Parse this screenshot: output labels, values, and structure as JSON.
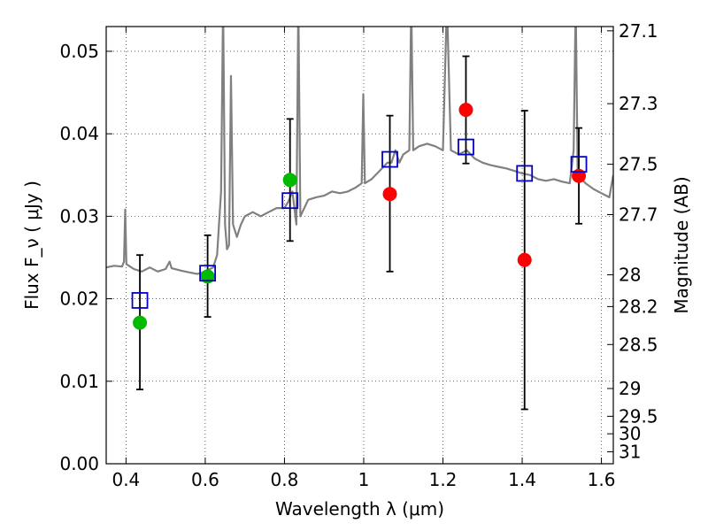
{
  "chart_data": {
    "type": "scatter",
    "xlabel": "Wavelength  λ (μm)",
    "ylabel": "Flux  F_ν  ( μJy )",
    "y2label": "Magnitude (AB)",
    "xlim": [
      0.35,
      1.63
    ],
    "ylim": [
      0.0,
      0.053
    ],
    "grid": true,
    "x_ticks": [
      {
        "value": 0.4,
        "label": "0.4"
      },
      {
        "value": 0.6,
        "label": "0.6"
      },
      {
        "value": 0.8,
        "label": "0.8"
      },
      {
        "value": 1.0,
        "label": "1"
      },
      {
        "value": 1.2,
        "label": "1.2"
      },
      {
        "value": 1.4,
        "label": "1.4"
      },
      {
        "value": 1.6,
        "label": "1.6"
      }
    ],
    "y_ticks": [
      {
        "value": 0.0,
        "label": "0.00"
      },
      {
        "value": 0.01,
        "label": "0.01"
      },
      {
        "value": 0.02,
        "label": "0.02"
      },
      {
        "value": 0.03,
        "label": "0.03"
      },
      {
        "value": 0.04,
        "label": "0.04"
      },
      {
        "value": 0.05,
        "label": "0.05"
      }
    ],
    "y2_ticks": [
      {
        "value": 27.1,
        "label": "27.1"
      },
      {
        "value": 27.3,
        "label": "27.3"
      },
      {
        "value": 27.5,
        "label": "27.5"
      },
      {
        "value": 27.7,
        "label": "27.7"
      },
      {
        "value": 28,
        "label": "28"
      },
      {
        "value": 28.2,
        "label": "28.2"
      },
      {
        "value": 28.5,
        "label": "28.5"
      },
      {
        "value": 29,
        "label": "29"
      },
      {
        "value": 29.5,
        "label": "29.5"
      },
      {
        "value": 30,
        "label": "30"
      },
      {
        "value": 31,
        "label": "31"
      }
    ],
    "model_spectrum": {
      "color": "#808080",
      "points": [
        [
          0.35,
          0.0238
        ],
        [
          0.37,
          0.024
        ],
        [
          0.39,
          0.0239
        ],
        [
          0.395,
          0.0245
        ],
        [
          0.398,
          0.0308
        ],
        [
          0.401,
          0.0242
        ],
        [
          0.42,
          0.0236
        ],
        [
          0.44,
          0.0233
        ],
        [
          0.46,
          0.0238
        ],
        [
          0.48,
          0.0233
        ],
        [
          0.5,
          0.0236
        ],
        [
          0.51,
          0.0245
        ],
        [
          0.515,
          0.0237
        ],
        [
          0.54,
          0.0234
        ],
        [
          0.56,
          0.0232
        ],
        [
          0.58,
          0.023
        ],
        [
          0.6,
          0.0233
        ],
        [
          0.62,
          0.0238
        ],
        [
          0.63,
          0.0253
        ],
        [
          0.64,
          0.033
        ],
        [
          0.645,
          0.056
        ],
        [
          0.65,
          0.029
        ],
        [
          0.655,
          0.026
        ],
        [
          0.66,
          0.0265
        ],
        [
          0.665,
          0.047
        ],
        [
          0.67,
          0.029
        ],
        [
          0.68,
          0.0275
        ],
        [
          0.69,
          0.029
        ],
        [
          0.7,
          0.03
        ],
        [
          0.72,
          0.0305
        ],
        [
          0.74,
          0.03
        ],
        [
          0.76,
          0.0305
        ],
        [
          0.78,
          0.031
        ],
        [
          0.8,
          0.031
        ],
        [
          0.81,
          0.0318
        ],
        [
          0.82,
          0.033
        ],
        [
          0.83,
          0.029
        ],
        [
          0.835,
          0.056
        ],
        [
          0.84,
          0.03
        ],
        [
          0.86,
          0.032
        ],
        [
          0.88,
          0.0323
        ],
        [
          0.9,
          0.0325
        ],
        [
          0.92,
          0.033
        ],
        [
          0.94,
          0.0328
        ],
        [
          0.96,
          0.033
        ],
        [
          0.98,
          0.0335
        ],
        [
          0.995,
          0.034
        ],
        [
          0.999,
          0.0448
        ],
        [
          1.003,
          0.034
        ],
        [
          1.02,
          0.0345
        ],
        [
          1.04,
          0.0355
        ],
        [
          1.06,
          0.0365
        ],
        [
          1.07,
          0.0365
        ],
        [
          1.08,
          0.038
        ],
        [
          1.09,
          0.0365
        ],
        [
          1.1,
          0.0375
        ],
        [
          1.115,
          0.038
        ],
        [
          1.12,
          0.056
        ],
        [
          1.125,
          0.038
        ],
        [
          1.14,
          0.0385
        ],
        [
          1.16,
          0.0388
        ],
        [
          1.18,
          0.0385
        ],
        [
          1.2,
          0.038
        ],
        [
          1.21,
          0.056
        ],
        [
          1.22,
          0.038
        ],
        [
          1.24,
          0.0375
        ],
        [
          1.26,
          0.038
        ],
        [
          1.28,
          0.037
        ],
        [
          1.3,
          0.0365
        ],
        [
          1.32,
          0.0362
        ],
        [
          1.34,
          0.036
        ],
        [
          1.36,
          0.0358
        ],
        [
          1.38,
          0.0355
        ],
        [
          1.4,
          0.0352
        ],
        [
          1.42,
          0.035
        ],
        [
          1.44,
          0.0345
        ],
        [
          1.46,
          0.0343
        ],
        [
          1.48,
          0.0345
        ],
        [
          1.5,
          0.0342
        ],
        [
          1.52,
          0.034
        ],
        [
          1.53,
          0.038
        ],
        [
          1.535,
          0.056
        ],
        [
          1.54,
          0.0355
        ],
        [
          1.55,
          0.0345
        ],
        [
          1.56,
          0.034
        ],
        [
          1.58,
          0.0333
        ],
        [
          1.6,
          0.0328
        ],
        [
          1.62,
          0.0323
        ],
        [
          1.63,
          0.035
        ]
      ]
    },
    "model_photometry": {
      "marker": "open-square",
      "color": "#0000cc",
      "points": [
        {
          "x": 0.435,
          "y": 0.0198
        },
        {
          "x": 0.606,
          "y": 0.0231
        },
        {
          "x": 0.814,
          "y": 0.0319
        },
        {
          "x": 1.066,
          "y": 0.0369
        },
        {
          "x": 1.258,
          "y": 0.0384
        },
        {
          "x": 1.406,
          "y": 0.0352
        },
        {
          "x": 1.543,
          "y": 0.0363
        }
      ]
    },
    "observed_photometry": [
      {
        "x": 0.435,
        "y": 0.0171,
        "err_low": 0.009,
        "err_high": 0.0253,
        "color": "#00bb00"
      },
      {
        "x": 0.606,
        "y": 0.0227,
        "err_low": 0.0178,
        "err_high": 0.0277,
        "color": "#00bb00"
      },
      {
        "x": 0.814,
        "y": 0.0344,
        "err_low": 0.027,
        "err_high": 0.0418,
        "color": "#00bb00"
      },
      {
        "x": 1.066,
        "y": 0.0327,
        "err_low": 0.0233,
        "err_high": 0.0422,
        "color": "#ff0000"
      },
      {
        "x": 1.258,
        "y": 0.0429,
        "err_low": 0.0364,
        "err_high": 0.0494,
        "color": "#ff0000"
      },
      {
        "x": 1.406,
        "y": 0.0247,
        "err_low": 0.0066,
        "err_high": 0.0428,
        "color": "#ff0000"
      },
      {
        "x": 1.543,
        "y": 0.0349,
        "err_low": 0.0291,
        "err_high": 0.0407,
        "color": "#ff0000"
      }
    ]
  }
}
